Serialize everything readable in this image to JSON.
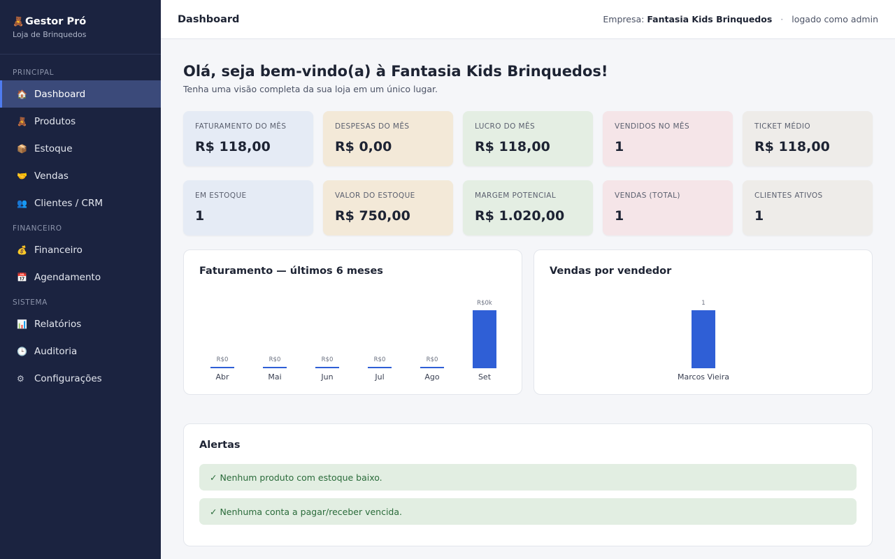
{
  "brand": {
    "icon": "teddy-bear-icon",
    "title": "Gestor Pró",
    "subtitle": "Loja de Brinquedos"
  },
  "sidebar": {
    "sections": [
      {
        "label": "PRINCIPAL"
      },
      {
        "label": "FINANCEIRO"
      },
      {
        "label": "SISTEMA"
      }
    ],
    "items": [
      {
        "label": "Dashboard",
        "icon": "home-icon",
        "active": true
      },
      {
        "label": "Produtos",
        "icon": "toy-icon"
      },
      {
        "label": "Estoque",
        "icon": "box-icon"
      },
      {
        "label": "Vendas",
        "icon": "handshake-icon"
      },
      {
        "label": "Clientes / CRM",
        "icon": "users-icon"
      },
      {
        "label": "Financeiro",
        "icon": "money-bag-icon"
      },
      {
        "label": "Agendamento",
        "icon": "calendar-icon"
      },
      {
        "label": "Relatórios",
        "icon": "bar-chart-icon"
      },
      {
        "label": "Auditoria",
        "icon": "clock-icon"
      },
      {
        "label": "Configurações",
        "icon": "gear-icon"
      }
    ]
  },
  "topbar": {
    "title": "Dashboard",
    "company_label": "Empresa:",
    "company_name": "Fantasia Kids Brinquedos",
    "separator": "·",
    "login_text": "logado como admin"
  },
  "welcome": {
    "title": "Olá, seja bem-vindo(a) à Fantasia Kids Brinquedos!",
    "subtitle": "Tenha uma visão completa da sua loja em um único lugar."
  },
  "kpis_row1": [
    {
      "label": "FATURAMENTO DO MÊS",
      "value": "R$ 118,00",
      "color": "#e5ebf5"
    },
    {
      "label": "DESPESAS DO MÊS",
      "value": "R$ 0,00",
      "color": "#f3e9d8"
    },
    {
      "label": "LUCRO DO MÊS",
      "value": "R$ 118,00",
      "color": "#e4eee3"
    },
    {
      "label": "VENDIDOS NO MÊS",
      "value": "1",
      "color": "#f5e5e8"
    },
    {
      "label": "TICKET MÉDIO",
      "value": "R$ 118,00",
      "color": "#eeece9"
    }
  ],
  "kpis_row2": [
    {
      "label": "EM ESTOQUE",
      "value": "1",
      "color": "#e5ebf5"
    },
    {
      "label": "VALOR DO ESTOQUE",
      "value": "R$ 750,00",
      "color": "#f3e9d8"
    },
    {
      "label": "MARGEM POTENCIAL",
      "value": "R$ 1.020,00",
      "color": "#e4eee3"
    },
    {
      "label": "VENDAS (TOTAL)",
      "value": "1",
      "color": "#f5e5e8"
    },
    {
      "label": "CLIENTES ATIVOS",
      "value": "1",
      "color": "#eeece9"
    }
  ],
  "revenue_panel": {
    "title": "Faturamento — últimos 6 meses"
  },
  "seller_panel": {
    "title": "Vendas por vendedor"
  },
  "chart_data": [
    {
      "type": "bar",
      "title": "Faturamento — últimos 6 meses",
      "categories": [
        "Abr",
        "Mai",
        "Jun",
        "Jul",
        "Ago",
        "Set"
      ],
      "values": [
        0,
        0,
        0,
        0,
        0,
        118
      ],
      "data_labels": [
        "R$0",
        "R$0",
        "R$0",
        "R$0",
        "R$0",
        "R$0k"
      ],
      "color": "#2f5fd6",
      "grid": false,
      "legend": "none"
    },
    {
      "type": "bar",
      "title": "Vendas por vendedor",
      "categories": [
        "Marcos Vieira"
      ],
      "values": [
        1
      ],
      "data_labels": [
        "1"
      ],
      "color": "#2f5fd6",
      "grid": false,
      "legend": "none"
    }
  ],
  "alerts": {
    "title": "Alertas",
    "items": [
      {
        "icon": "check-icon",
        "text": "✓ Nenhum produto com estoque baixo."
      },
      {
        "icon": "check-icon",
        "text": "✓ Nenhuma conta a pagar/receber vencida."
      }
    ],
    "color": "#e2eee2"
  }
}
